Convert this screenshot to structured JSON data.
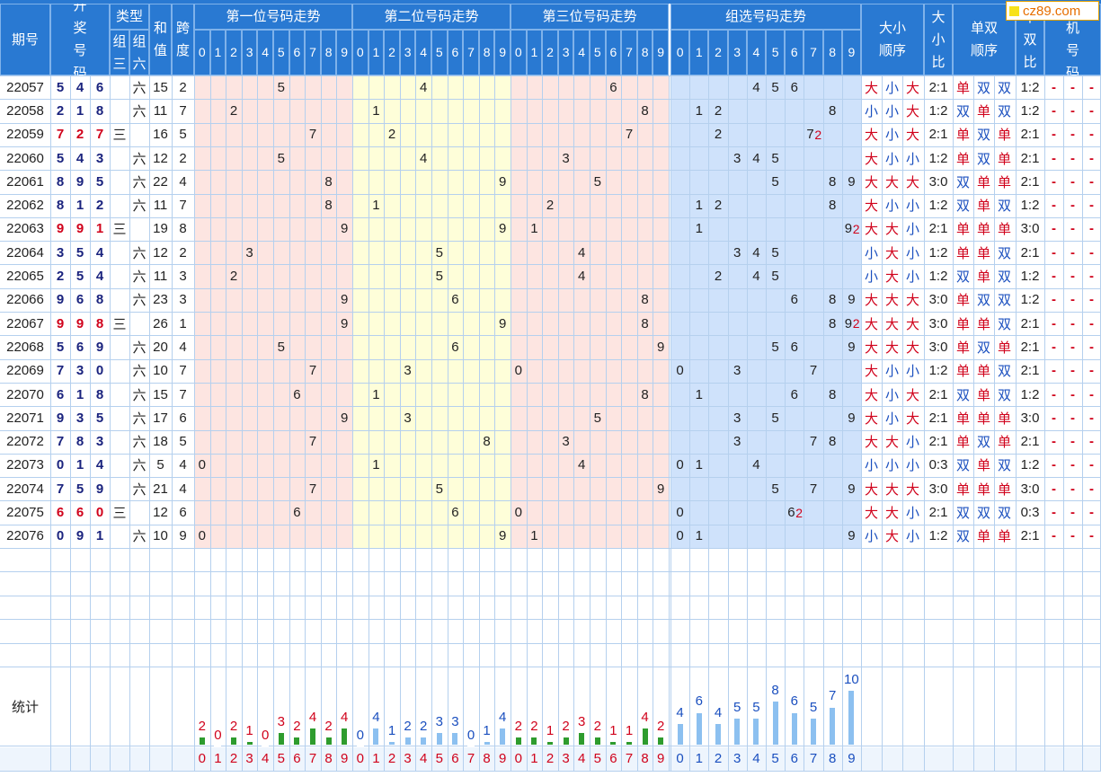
{
  "header": {
    "period": "期号",
    "draw": "开奖号码",
    "type": "类型",
    "type_g3": "组三",
    "type_g6": "组六",
    "sum": "和值",
    "span": "跨度",
    "pos1": "第一位号码走势",
    "pos2": "第二位号码走势",
    "pos3": "第三位号码走势",
    "group": "组选号码走势",
    "bigsmall_order": "大小顺序",
    "bigsmall_ratio": "大小比",
    "oddeven_order": "单双顺序",
    "oddeven_ratio": "单双比",
    "test": "试机号码",
    "digits": [
      "0",
      "1",
      "2",
      "3",
      "4",
      "5",
      "6",
      "7",
      "8",
      "9"
    ]
  },
  "logo": "cz89.com",
  "rows": [
    {
      "p": "22057",
      "n": [
        "5",
        "4",
        "6"
      ],
      "t": "六",
      "s": "15",
      "k": "2",
      "g": [
        "4",
        "5",
        "6"
      ],
      "bs": [
        "大",
        "小",
        "大"
      ],
      "bsr": "2:1",
      "oe": [
        "单",
        "双",
        "双"
      ],
      "oer": "1:2"
    },
    {
      "p": "22058",
      "n": [
        "2",
        "1",
        "8"
      ],
      "t": "六",
      "s": "11",
      "k": "7",
      "g": [
        "1",
        "2",
        "8"
      ],
      "bs": [
        "小",
        "小",
        "大"
      ],
      "bsr": "1:2",
      "oe": [
        "双",
        "单",
        "双"
      ],
      "oer": "1:2"
    },
    {
      "p": "22059",
      "n": [
        "7",
        "2",
        "7"
      ],
      "t": "三",
      "s": "16",
      "k": "5",
      "g": [
        "2",
        "7",
        "2"
      ],
      "bs": [
        "大",
        "小",
        "大"
      ],
      "bsr": "2:1",
      "oe": [
        "单",
        "双",
        "单"
      ],
      "oer": "2:1"
    },
    {
      "p": "22060",
      "n": [
        "5",
        "4",
        "3"
      ],
      "t": "六",
      "s": "12",
      "k": "2",
      "g": [
        "3",
        "4",
        "5"
      ],
      "bs": [
        "大",
        "小",
        "小"
      ],
      "bsr": "1:2",
      "oe": [
        "单",
        "双",
        "单"
      ],
      "oer": "2:1"
    },
    {
      "p": "22061",
      "n": [
        "8",
        "9",
        "5"
      ],
      "t": "六",
      "s": "22",
      "k": "4",
      "g": [
        "5",
        "8",
        "9"
      ],
      "bs": [
        "大",
        "大",
        "大"
      ],
      "bsr": "3:0",
      "oe": [
        "双",
        "单",
        "单"
      ],
      "oer": "2:1"
    },
    {
      "p": "22062",
      "n": [
        "8",
        "1",
        "2"
      ],
      "t": "六",
      "s": "11",
      "k": "7",
      "g": [
        "1",
        "2",
        "8"
      ],
      "bs": [
        "大",
        "小",
        "小"
      ],
      "bsr": "1:2",
      "oe": [
        "双",
        "单",
        "双"
      ],
      "oer": "1:2"
    },
    {
      "p": "22063",
      "n": [
        "9",
        "9",
        "1"
      ],
      "t": "三",
      "s": "19",
      "k": "8",
      "g": [
        "1",
        "9",
        "2"
      ],
      "bs": [
        "大",
        "大",
        "小"
      ],
      "bsr": "2:1",
      "oe": [
        "单",
        "单",
        "单"
      ],
      "oer": "3:0"
    },
    {
      "p": "22064",
      "n": [
        "3",
        "5",
        "4"
      ],
      "t": "六",
      "s": "12",
      "k": "2",
      "g": [
        "3",
        "4",
        "5"
      ],
      "bs": [
        "小",
        "大",
        "小"
      ],
      "bsr": "1:2",
      "oe": [
        "单",
        "单",
        "双"
      ],
      "oer": "2:1"
    },
    {
      "p": "22065",
      "n": [
        "2",
        "5",
        "4"
      ],
      "t": "六",
      "s": "11",
      "k": "3",
      "g": [
        "2",
        "4",
        "5"
      ],
      "bs": [
        "小",
        "大",
        "小"
      ],
      "bsr": "1:2",
      "oe": [
        "双",
        "单",
        "双"
      ],
      "oer": "1:2"
    },
    {
      "p": "22066",
      "n": [
        "9",
        "6",
        "8"
      ],
      "t": "六",
      "s": "23",
      "k": "3",
      "g": [
        "6",
        "8",
        "9"
      ],
      "bs": [
        "大",
        "大",
        "大"
      ],
      "bsr": "3:0",
      "oe": [
        "单",
        "双",
        "双"
      ],
      "oer": "1:2"
    },
    {
      "p": "22067",
      "n": [
        "9",
        "9",
        "8"
      ],
      "t": "三",
      "s": "26",
      "k": "1",
      "g": [
        "8",
        "9",
        "2"
      ],
      "bs": [
        "大",
        "大",
        "大"
      ],
      "bsr": "3:0",
      "oe": [
        "单",
        "单",
        "双"
      ],
      "oer": "2:1"
    },
    {
      "p": "22068",
      "n": [
        "5",
        "6",
        "9"
      ],
      "t": "六",
      "s": "20",
      "k": "4",
      "g": [
        "5",
        "6",
        "9"
      ],
      "bs": [
        "大",
        "大",
        "大"
      ],
      "bsr": "3:0",
      "oe": [
        "单",
        "双",
        "单"
      ],
      "oer": "2:1"
    },
    {
      "p": "22069",
      "n": [
        "7",
        "3",
        "0"
      ],
      "t": "六",
      "s": "10",
      "k": "7",
      "g": [
        "0",
        "3",
        "7"
      ],
      "bs": [
        "大",
        "小",
        "小"
      ],
      "bsr": "1:2",
      "oe": [
        "单",
        "单",
        "双"
      ],
      "oer": "2:1"
    },
    {
      "p": "22070",
      "n": [
        "6",
        "1",
        "8"
      ],
      "t": "六",
      "s": "15",
      "k": "7",
      "g": [
        "1",
        "6",
        "8"
      ],
      "bs": [
        "大",
        "小",
        "大"
      ],
      "bsr": "2:1",
      "oe": [
        "双",
        "单",
        "双"
      ],
      "oer": "1:2"
    },
    {
      "p": "22071",
      "n": [
        "9",
        "3",
        "5"
      ],
      "t": "六",
      "s": "17",
      "k": "6",
      "g": [
        "3",
        "5",
        "9"
      ],
      "bs": [
        "大",
        "小",
        "大"
      ],
      "bsr": "2:1",
      "oe": [
        "单",
        "单",
        "单"
      ],
      "oer": "3:0"
    },
    {
      "p": "22072",
      "n": [
        "7",
        "8",
        "3"
      ],
      "t": "六",
      "s": "18",
      "k": "5",
      "g": [
        "3",
        "7",
        "8"
      ],
      "bs": [
        "大",
        "大",
        "小"
      ],
      "bsr": "2:1",
      "oe": [
        "单",
        "双",
        "单"
      ],
      "oer": "2:1"
    },
    {
      "p": "22073",
      "n": [
        "0",
        "1",
        "4"
      ],
      "t": "六",
      "s": "5",
      "k": "4",
      "g": [
        "0",
        "1",
        "4"
      ],
      "bs": [
        "小",
        "小",
        "小"
      ],
      "bsr": "0:3",
      "oe": [
        "双",
        "单",
        "双"
      ],
      "oer": "1:2"
    },
    {
      "p": "22074",
      "n": [
        "7",
        "5",
        "9"
      ],
      "t": "六",
      "s": "21",
      "k": "4",
      "g": [
        "5",
        "7",
        "9"
      ],
      "bs": [
        "大",
        "大",
        "大"
      ],
      "bsr": "3:0",
      "oe": [
        "单",
        "单",
        "单"
      ],
      "oer": "3:0"
    },
    {
      "p": "22075",
      "n": [
        "6",
        "6",
        "0"
      ],
      "t": "三",
      "s": "12",
      "k": "6",
      "g": [
        "0",
        "6",
        "2"
      ],
      "bs": [
        "大",
        "大",
        "小"
      ],
      "bsr": "2:1",
      "oe": [
        "双",
        "双",
        "双"
      ],
      "oer": "0:3"
    },
    {
      "p": "22076",
      "n": [
        "0",
        "9",
        "1"
      ],
      "t": "六",
      "s": "10",
      "k": "9",
      "g": [
        "0",
        "1",
        "9"
      ],
      "bs": [
        "小",
        "大",
        "小"
      ],
      "bsr": "1:2",
      "oe": [
        "双",
        "单",
        "单"
      ],
      "oer": "2:1"
    }
  ],
  "test_dash": "-",
  "stats": {
    "label": "统计",
    "pos1": [
      "2",
      "0",
      "2",
      "1",
      "0",
      "3",
      "2",
      "4",
      "2",
      "4"
    ],
    "pos2": [
      "0",
      "4",
      "1",
      "2",
      "2",
      "3",
      "3",
      "0",
      "1",
      "4"
    ],
    "pos3": [
      "2",
      "2",
      "1",
      "2",
      "3",
      "2",
      "1",
      "1",
      "4",
      "2"
    ],
    "group": [
      "4",
      "6",
      "4",
      "5",
      "5",
      "8",
      "6",
      "5",
      "7",
      "10"
    ]
  },
  "colors": {
    "header": "#2979d2",
    "pink": "#fde5e1",
    "yellow": "#fefed9",
    "blue": "#cfe2fb",
    "bar_green": "#2e9c2e",
    "bar_blue": "#8cc0f0"
  }
}
